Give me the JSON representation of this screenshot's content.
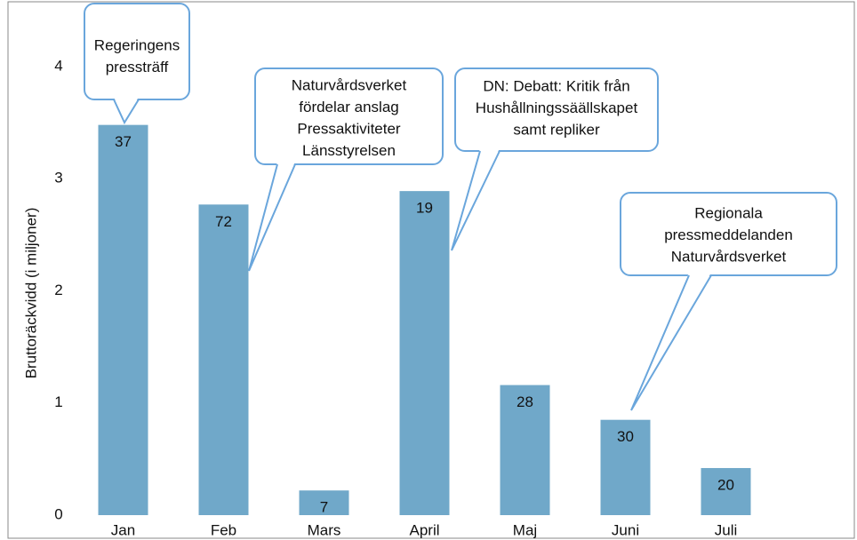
{
  "chart_data": {
    "type": "bar",
    "y_label": "Bruttoräckvidd (i miljoner)",
    "categories": [
      "Jan",
      "Feb",
      "Mars",
      "April",
      "Maj",
      "Juni",
      "Juli"
    ],
    "values": [
      3.48,
      2.77,
      0.22,
      2.89,
      1.16,
      0.85,
      0.42
    ],
    "bar_labels": [
      37,
      72,
      7,
      19,
      28,
      30,
      20
    ],
    "color": "#70a8c9",
    "ylim": [
      0,
      4.5
    ],
    "yticks": [
      0,
      1,
      2,
      3,
      4
    ],
    "grid": false,
    "annotations": [
      {
        "category": "Jan",
        "lines": [
          "Regeringens",
          "pressträff"
        ]
      },
      {
        "category": "Feb",
        "lines": [
          "Naturvårdsverket",
          "fördelar anslag",
          "Pressaktiviteter",
          "Länsstyrelsen"
        ]
      },
      {
        "category": "April",
        "lines": [
          "DN: Debatt: Kritik från",
          "Hushållningssäällskapet",
          "samt repliker"
        ]
      },
      {
        "category": "Juni",
        "lines": [
          "Regionala",
          "pressmeddelanden",
          "Naturvårdsverket"
        ]
      }
    ]
  }
}
